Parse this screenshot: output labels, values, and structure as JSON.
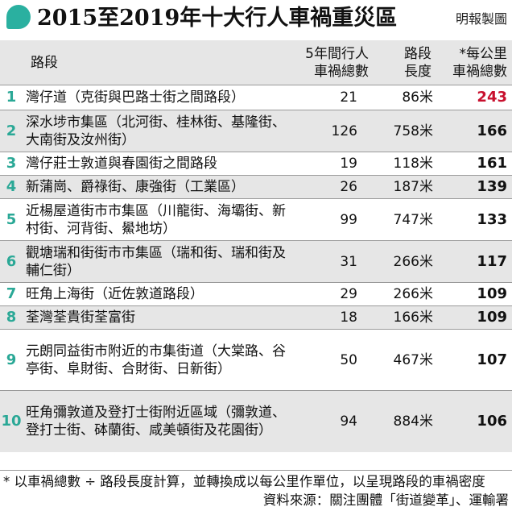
{
  "title": "2015至2019年十大行人車禍重災區",
  "credit": "明報製圖",
  "colors": {
    "accent": "#2aa896",
    "highlight": "#c8102e",
    "band": "#e6e6e6"
  },
  "table": {
    "headers": {
      "road": "路段",
      "accidents": [
        "5年間行人",
        "車禍總數"
      ],
      "length": [
        "路段",
        "長度"
      ],
      "density": [
        "*每公里",
        "車禍總數"
      ]
    }
  },
  "chart_data": {
    "type": "table",
    "title": "2015至2019年十大行人車禍重災區",
    "columns": [
      "路段",
      "5年間行人車禍總數",
      "路段長度",
      "*每公里車禍總數"
    ],
    "rows": [
      {
        "rank": "1",
        "road": "灣仔道（克街與巴路士街之間路段）",
        "accidents": "21",
        "length": "86米",
        "density": "243"
      },
      {
        "rank": "2",
        "road": "深水埗市集區（北河街、桂林街、基隆街、大南街及汝州街）",
        "accidents": "126",
        "length": "758米",
        "density": "166"
      },
      {
        "rank": "3",
        "road": "灣仔莊士敦道與春園街之間路段",
        "accidents": "19",
        "length": "118米",
        "density": "161"
      },
      {
        "rank": "4",
        "road": "新蒲崗、爵祿街、康強街（工業區）",
        "accidents": "26",
        "length": "187米",
        "density": "139"
      },
      {
        "rank": "5",
        "road": "近楊屋道街市市集區（川龍街、海壩街、新村街、河背街、鱟地坊）",
        "accidents": "99",
        "length": "747米",
        "density": "133"
      },
      {
        "rank": "6",
        "road": "觀塘瑞和街街市市集區（瑞和街、瑞和街及輔仁街）",
        "accidents": "31",
        "length": "266米",
        "density": "117"
      },
      {
        "rank": "7",
        "road": "旺角上海街（近佐敦道路段）",
        "accidents": "29",
        "length": "266米",
        "density": "109"
      },
      {
        "rank": "8",
        "road": "荃灣荃貴街荃富街",
        "accidents": "18",
        "length": "166米",
        "density": "109"
      },
      {
        "rank": "9",
        "road": "元朗同益街市附近的市集街道（大棠路、谷亭街、阜財街、合財街、日新街）",
        "accidents": "50",
        "length": "467米",
        "density": "107"
      },
      {
        "rank": "10",
        "road": "旺角彌敦道及登打士街附近區域（彌敦道、登打士街、砵蘭街、咸美頓街及花園街）",
        "accidents": "94",
        "length": "884米",
        "density": "106"
      }
    ]
  },
  "footer": {
    "note": "* 以車禍總數 ÷ 路段長度計算，並轉換成以每公里作單位，以呈現路段的車禍密度",
    "source": "資料來源：關注團體「街道變革」、運輸署"
  }
}
